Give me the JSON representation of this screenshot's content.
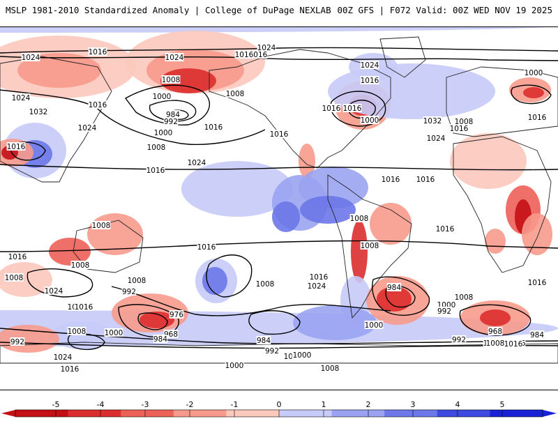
{
  "header": {
    "left_title": "MSLP 1981-2010 Standardized Anomaly | College of DuPage NEXLAB",
    "right_title": "00Z GFS | F072 Valid: 00Z WED NOV 19 2025"
  },
  "map": {
    "projection": "global equirectangular (Pacific-centered)",
    "field": "MSLP standardized anomaly (shaded) with MSLP isobars (contoured, hPa)",
    "isobar_labels": [
      "1024",
      "1016",
      "1024",
      "1016",
      "1024",
      "1008",
      "1024",
      "1016",
      "1032",
      "1024",
      "1016",
      "1000",
      "984",
      "992",
      "1000",
      "1008",
      "1016",
      "1024",
      "1008",
      "1016",
      "1024",
      "1016",
      "1016",
      "1032",
      "1016",
      "1024",
      "1000",
      "1000",
      "1032",
      "1008",
      "1016",
      "1016",
      "1016",
      "1016",
      "1016",
      "1016",
      "1008",
      "1008",
      "1016",
      "1016",
      "1008",
      "1016",
      "1008",
      "1008",
      "1016",
      "992",
      "1008",
      "1024",
      "1024",
      "1016",
      "1016",
      "1008",
      "984",
      "1000",
      "992",
      "1016",
      "1008",
      "976",
      "968",
      "992",
      "1000",
      "1008",
      "1000",
      "984",
      "1024",
      "1016",
      "1000",
      "1016",
      "984",
      "992",
      "1000",
      "1008",
      "1008",
      "968",
      "992",
      "1008",
      "1016",
      "984",
      "1016",
      "1000",
      "1008"
    ]
  },
  "colorbar": {
    "ticks": [
      "-5",
      "-4",
      "-3",
      "-2",
      "-1",
      "0",
      "1",
      "2",
      "3",
      "4",
      "5"
    ],
    "colors": [
      "#c40f16",
      "#dc2e2e",
      "#ec6158",
      "#f79a8c",
      "#fcc9bd",
      "#ffffff",
      "#c6cbf8",
      "#9aa3f1",
      "#6c77e8",
      "#3f4ae0",
      "#1a22d6"
    ]
  },
  "colors": {
    "land": "#ffffff",
    "coast": "#222222",
    "isobar": "#000000"
  }
}
